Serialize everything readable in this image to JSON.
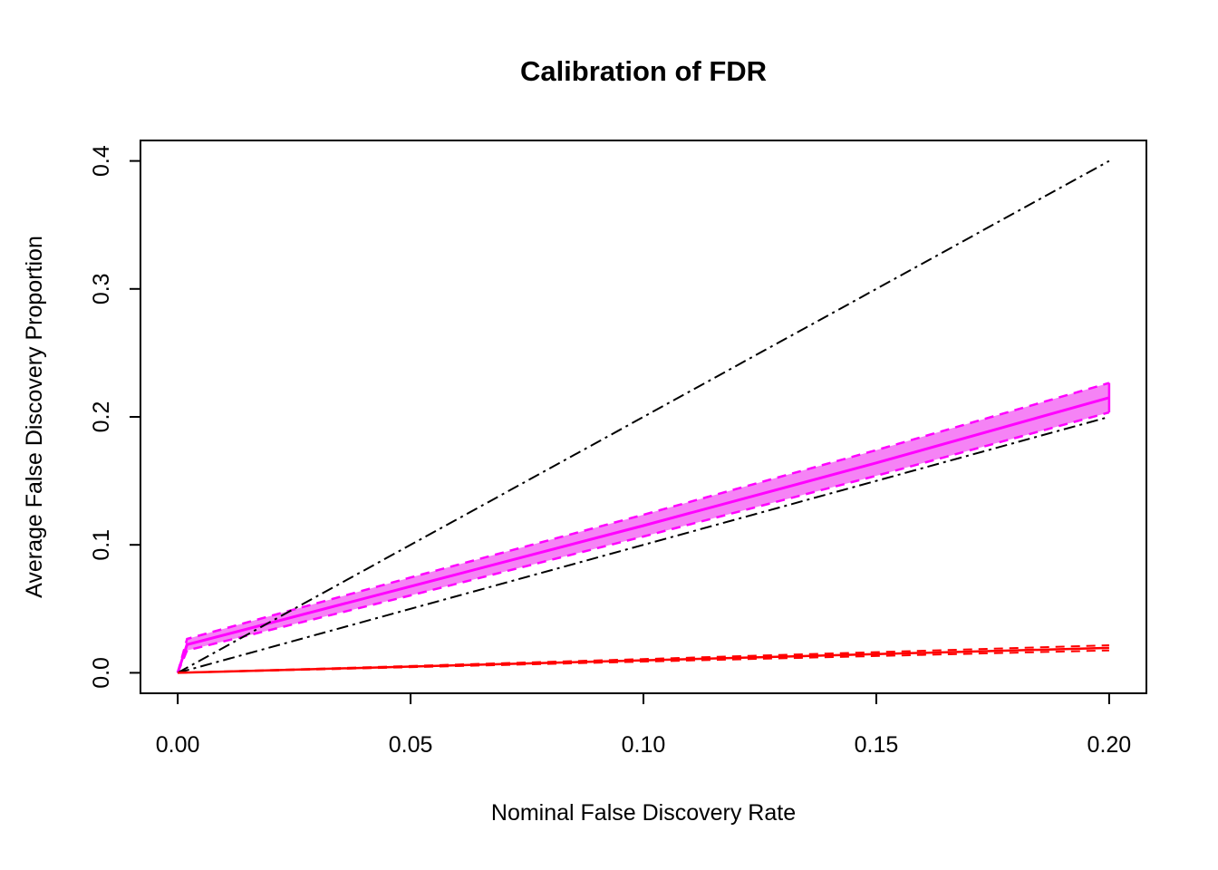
{
  "chart_data": {
    "type": "line",
    "title": "Calibration of FDR",
    "xlabel": "Nominal False Discovery Rate",
    "ylabel": "Average False Discovery Proportion",
    "xlim": [
      -0.008,
      0.208
    ],
    "ylim": [
      -0.016,
      0.416
    ],
    "grid": false,
    "legend": null,
    "x_ticks": [
      {
        "v": 0.0,
        "label": "0.00"
      },
      {
        "v": 0.05,
        "label": "0.05"
      },
      {
        "v": 0.1,
        "label": "0.10"
      },
      {
        "v": 0.15,
        "label": "0.15"
      },
      {
        "v": 0.2,
        "label": "0.20"
      }
    ],
    "y_ticks": [
      {
        "v": 0.0,
        "label": "0.0"
      },
      {
        "v": 0.1,
        "label": "0.1"
      },
      {
        "v": 0.2,
        "label": "0.2"
      },
      {
        "v": 0.3,
        "label": "0.3"
      },
      {
        "v": 0.4,
        "label": "0.4"
      }
    ],
    "colors": {
      "band_fill": "#F583F5",
      "magenta": "#FF00FF",
      "red": "#FF0000",
      "reference": "#000000"
    },
    "series": [
      {
        "name": "fdr-confidence-band",
        "type": "band",
        "fill": "#F583F5",
        "edge_color": "#FF00FF",
        "edge_style": "dashed",
        "edge_width": 2.5,
        "upper": [
          [
            0,
            0
          ],
          [
            0.002,
            0.0265
          ],
          [
            0.05,
            0.0745
          ],
          [
            0.1,
            0.1235
          ],
          [
            0.15,
            0.174
          ],
          [
            0.2,
            0.2265
          ]
        ],
        "lower": [
          [
            0,
            0
          ],
          [
            0.002,
            0.0175
          ],
          [
            0.05,
            0.0605
          ],
          [
            0.1,
            0.1065
          ],
          [
            0.15,
            0.154
          ],
          [
            0.2,
            0.2035
          ]
        ]
      },
      {
        "name": "fdr-mean-line",
        "type": "line",
        "color": "#FF00FF",
        "style": "solid",
        "width": 3,
        "points": [
          [
            0,
            0
          ],
          [
            0.002,
            0.022
          ],
          [
            0.05,
            0.0675
          ],
          [
            0.1,
            0.115
          ],
          [
            0.15,
            0.164
          ],
          [
            0.2,
            0.215
          ]
        ]
      },
      {
        "name": "reference-slope-2",
        "type": "line",
        "color": "#000000",
        "style": "dashdot",
        "width": 2,
        "points": [
          [
            0,
            0
          ],
          [
            0.2,
            0.4
          ]
        ]
      },
      {
        "name": "reference-slope-1",
        "type": "line",
        "color": "#000000",
        "style": "dashdot",
        "width": 2,
        "points": [
          [
            0,
            0
          ],
          [
            0.2,
            0.2
          ]
        ]
      },
      {
        "name": "red-band-upper",
        "type": "line",
        "color": "#FF0000",
        "style": "dashed",
        "width": 2,
        "points": [
          [
            0,
            0
          ],
          [
            0.2,
            0.0215
          ]
        ]
      },
      {
        "name": "red-band-lower",
        "type": "line",
        "color": "#FF0000",
        "style": "dashed",
        "width": 2,
        "points": [
          [
            0,
            0
          ],
          [
            0.2,
            0.0175
          ]
        ]
      },
      {
        "name": "red-mean-line",
        "type": "line",
        "color": "#FF0000",
        "style": "solid",
        "width": 2.5,
        "points": [
          [
            0,
            0
          ],
          [
            0.2,
            0.0195
          ]
        ]
      }
    ]
  }
}
